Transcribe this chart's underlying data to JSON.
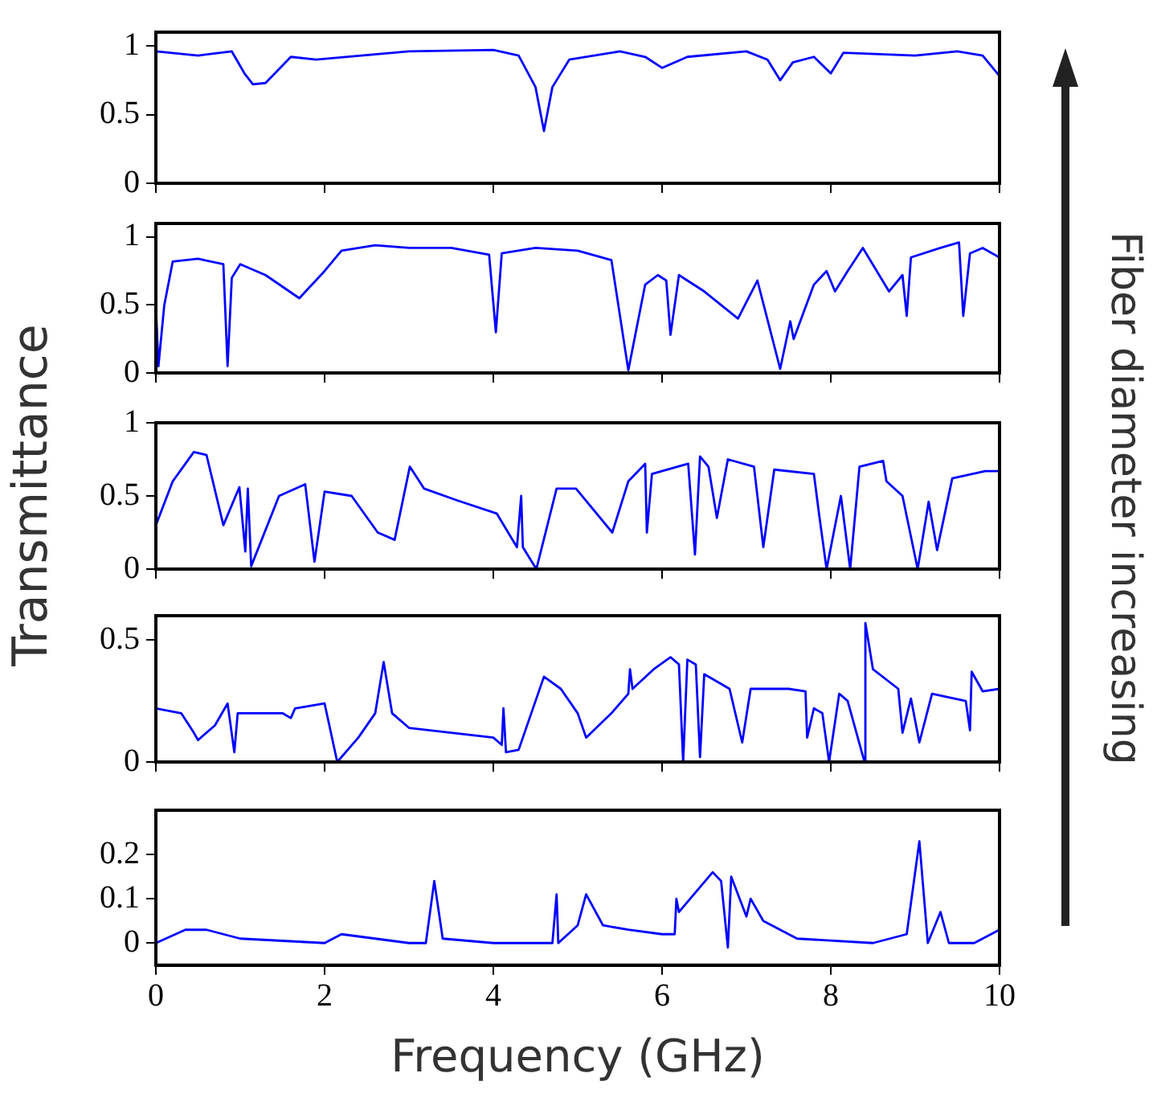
{
  "chart_data": [
    {
      "type": "line",
      "annotations": [
        "Fiber diameter increasing"
      ],
      "xlim": [
        0,
        10
      ],
      "xticks": [
        0,
        2,
        4,
        6,
        8,
        10
      ],
      "ylim": [
        0,
        1.1
      ],
      "yticks": [
        0,
        0.5,
        1
      ],
      "tick_labels": "y",
      "grid": false,
      "legend": false,
      "series": [
        {
          "color": "#0000ff",
          "x": [
            0,
            0.5,
            0.9,
            1.05,
            1.15,
            1.3,
            1.6,
            1.9,
            3,
            4,
            4.3,
            4.5,
            4.6,
            4.7,
            4.9,
            5.5,
            5.8,
            6,
            6.3,
            7,
            7.25,
            7.4,
            7.55,
            7.8,
            8,
            8.15,
            9,
            9.5,
            9.8,
            10
          ],
          "values": [
            0.96,
            0.93,
            0.96,
            0.8,
            0.72,
            0.73,
            0.92,
            0.9,
            0.96,
            0.97,
            0.93,
            0.7,
            0.38,
            0.7,
            0.9,
            0.96,
            0.92,
            0.84,
            0.92,
            0.96,
            0.9,
            0.75,
            0.88,
            0.92,
            0.8,
            0.95,
            0.93,
            0.96,
            0.93,
            0.78
          ]
        }
      ]
    },
    {
      "type": "line",
      "xlim": [
        0,
        10
      ],
      "xticks": [
        0,
        2,
        4,
        6,
        8,
        10
      ],
      "ylim": [
        0,
        1.1
      ],
      "yticks": [
        0,
        0.5,
        1
      ],
      "tick_labels": "y",
      "grid": false,
      "legend": false,
      "series": [
        {
          "color": "#0000ff",
          "x": [
            0,
            0.03,
            0.1,
            0.2,
            0.5,
            0.8,
            0.85,
            0.9,
            1.0,
            1.3,
            1.7,
            2.0,
            2.2,
            2.6,
            3,
            3.5,
            3.95,
            4.03,
            4.1,
            4.5,
            5,
            5.4,
            5.6,
            5.8,
            5.95,
            6.05,
            6.1,
            6.2,
            6.5,
            6.9,
            7.13,
            7.4,
            7.52,
            7.56,
            7.8,
            7.95,
            8.05,
            8.2,
            8.38,
            8.69,
            8.85,
            8.9,
            8.95,
            9.3,
            9.52,
            9.57,
            9.65,
            9.8,
            10
          ],
          "values": [
            0.5,
            0.05,
            0.5,
            0.82,
            0.84,
            0.8,
            0.05,
            0.7,
            0.8,
            0.72,
            0.55,
            0.75,
            0.9,
            0.94,
            0.92,
            0.92,
            0.87,
            0.3,
            0.88,
            0.92,
            0.9,
            0.83,
            0.02,
            0.65,
            0.72,
            0.68,
            0.28,
            0.72,
            0.6,
            0.4,
            0.68,
            0.03,
            0.38,
            0.25,
            0.65,
            0.75,
            0.6,
            0.75,
            0.92,
            0.6,
            0.72,
            0.42,
            0.85,
            0.92,
            0.96,
            0.42,
            0.88,
            0.92,
            0.85
          ]
        }
      ]
    },
    {
      "type": "line",
      "ylabel": "Transmittance",
      "xlim": [
        0,
        10
      ],
      "xticks": [
        0,
        2,
        4,
        6,
        8,
        10
      ],
      "ylim": [
        0,
        1
      ],
      "yticks": [
        0,
        0.5,
        1
      ],
      "tick_labels": "y",
      "grid": false,
      "legend": false,
      "series": [
        {
          "color": "#0000ff",
          "x": [
            0,
            0.2,
            0.45,
            0.6,
            0.8,
            0.99,
            1.06,
            1.09,
            1.13,
            1.46,
            1.77,
            1.88,
            2.0,
            2.32,
            2.63,
            2.83,
            3.01,
            3.18,
            3.57,
            4.04,
            4.28,
            4.33,
            4.35,
            4.51,
            4.75,
            4.98,
            5.41,
            5.6,
            5.8,
            5.82,
            5.88,
            6.31,
            6.39,
            6.45,
            6.55,
            6.65,
            6.78,
            7.09,
            7.2,
            7.33,
            7.8,
            7.86,
            7.95,
            8.12,
            8.23,
            8.34,
            8.62,
            8.66,
            8.85,
            9.03,
            9.16,
            9.26,
            9.44,
            9.83,
            10
          ],
          "values": [
            0.3,
            0.6,
            0.8,
            0.78,
            0.3,
            0.56,
            0.12,
            0.55,
            0.02,
            0.5,
            0.58,
            0.05,
            0.53,
            0.5,
            0.25,
            0.2,
            0.7,
            0.55,
            0.47,
            0.38,
            0.15,
            0.5,
            0.15,
            0.0,
            0.55,
            0.55,
            0.25,
            0.6,
            0.72,
            0.25,
            0.65,
            0.72,
            0.1,
            0.77,
            0.7,
            0.35,
            0.75,
            0.7,
            0.15,
            0.68,
            0.65,
            0.38,
            0.0,
            0.5,
            0.0,
            0.7,
            0.74,
            0.6,
            0.5,
            0.0,
            0.46,
            0.13,
            0.62,
            0.67,
            0.67
          ]
        }
      ]
    },
    {
      "type": "line",
      "xlim": [
        0,
        10
      ],
      "xticks": [
        0,
        2,
        4,
        6,
        8,
        10
      ],
      "ylim": [
        0,
        0.6
      ],
      "yticks": [
        0,
        0.5
      ],
      "tick_labels": "y",
      "grid": false,
      "legend": false,
      "series": [
        {
          "color": "#0000ff",
          "x": [
            0,
            0.3,
            0.45,
            0.5,
            0.7,
            0.85,
            0.93,
            0.97,
            1.5,
            1.6,
            1.65,
            2.0,
            2.15,
            2.4,
            2.6,
            2.7,
            2.8,
            3.0,
            4.0,
            4.1,
            4.12,
            4.15,
            4.3,
            4.5,
            4.6,
            4.8,
            5.0,
            5.1,
            5.4,
            5.6,
            5.62,
            5.65,
            5.9,
            6.1,
            6.2,
            6.25,
            6.3,
            6.4,
            6.45,
            6.5,
            6.8,
            6.95,
            7.05,
            7.5,
            7.7,
            7.72,
            7.8,
            7.9,
            7.98,
            8.1,
            8.2,
            8.4,
            8.41,
            8.5,
            8.8,
            8.85,
            8.95,
            9.05,
            9.2,
            9.6,
            9.65,
            9.67,
            9.8,
            10
          ],
          "values": [
            0.22,
            0.2,
            0.12,
            0.09,
            0.15,
            0.24,
            0.04,
            0.2,
            0.2,
            0.18,
            0.22,
            0.24,
            0.0,
            0.1,
            0.2,
            0.41,
            0.2,
            0.14,
            0.1,
            0.07,
            0.22,
            0.04,
            0.05,
            0.25,
            0.35,
            0.3,
            0.2,
            0.1,
            0.2,
            0.28,
            0.38,
            0.3,
            0.38,
            0.43,
            0.4,
            0.0,
            0.42,
            0.4,
            0.02,
            0.36,
            0.3,
            0.08,
            0.3,
            0.3,
            0.29,
            0.1,
            0.22,
            0.2,
            0.0,
            0.28,
            0.25,
            0.0,
            0.57,
            0.38,
            0.3,
            0.12,
            0.26,
            0.08,
            0.28,
            0.25,
            0.13,
            0.37,
            0.29,
            0.3
          ]
        }
      ]
    },
    {
      "type": "line",
      "xlabel": "Frequency (GHz)",
      "xlim": [
        0,
        10
      ],
      "xticks": [
        0,
        2,
        4,
        6,
        8,
        10
      ],
      "ylim": [
        -0.05,
        0.3
      ],
      "yticks": [
        0,
        0.1,
        0.2
      ],
      "grid": false,
      "legend": false,
      "series": [
        {
          "color": "#0000ff",
          "x": [
            0,
            0.35,
            0.6,
            1,
            2,
            2.2,
            3,
            3.2,
            3.3,
            3.4,
            4.0,
            4.7,
            4.75,
            4.77,
            5.0,
            5.1,
            5.3,
            5.6,
            6.0,
            6.15,
            6.17,
            6.2,
            6.6,
            6.7,
            6.78,
            6.82,
            7.0,
            7.05,
            7.2,
            7.6,
            8.5,
            8.9,
            9.05,
            9.15,
            9.3,
            9.4,
            9.7,
            10
          ],
          "values": [
            0.0,
            0.03,
            0.03,
            0.01,
            0.0,
            0.02,
            0.0,
            0.0,
            0.14,
            0.01,
            0.0,
            0.0,
            0.11,
            0.0,
            0.04,
            0.11,
            0.04,
            0.03,
            0.02,
            0.02,
            0.1,
            0.07,
            0.16,
            0.14,
            -0.01,
            0.15,
            0.06,
            0.1,
            0.05,
            0.01,
            0.0,
            0.02,
            0.23,
            0.0,
            0.07,
            0.0,
            0.0,
            0.03
          ]
        }
      ]
    }
  ]
}
